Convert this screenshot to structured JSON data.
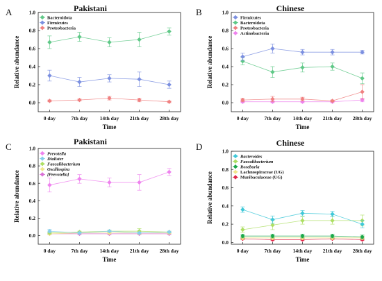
{
  "figure": {
    "panels": [
      "A",
      "B",
      "C",
      "D"
    ]
  },
  "chart_data": [
    {
      "panel": "A",
      "type": "line",
      "title": "Pakistani",
      "xlabel": "Time",
      "ylabel": "Relative abundance",
      "categories": [
        "0 day",
        "7th day",
        "14th day",
        "21th day",
        "28th day"
      ],
      "ylim": [
        -0.1,
        1.0
      ],
      "yticks": [
        "0.0",
        "0.2",
        "0.4",
        "0.6",
        "0.8",
        "1.0"
      ],
      "legend_position": "top-left",
      "series": [
        {
          "name": "Bacteroidota",
          "color": "#5fc887",
          "italic": false,
          "values": [
            0.67,
            0.73,
            0.67,
            0.7,
            0.79
          ],
          "errors": [
            0.07,
            0.05,
            0.05,
            0.08,
            0.04
          ]
        },
        {
          "name": "Firmicutes",
          "color": "#7b8fe0",
          "italic": false,
          "values": [
            0.3,
            0.23,
            0.27,
            0.26,
            0.2
          ],
          "errors": [
            0.06,
            0.05,
            0.04,
            0.08,
            0.04
          ]
        },
        {
          "name": "Proteobacteria",
          "color": "#f08080",
          "italic": false,
          "values": [
            0.02,
            0.03,
            0.05,
            0.03,
            0.01
          ],
          "errors": [
            0.01,
            0.01,
            0.02,
            0.02,
            0.01
          ]
        }
      ]
    },
    {
      "panel": "B",
      "type": "line",
      "title": "Chinese",
      "xlabel": "Time",
      "ylabel": "Relative abundance",
      "categories": [
        "0 day",
        "7th day",
        "14th day",
        "21th day",
        "28th day"
      ],
      "ylim": [
        -0.1,
        1.0
      ],
      "yticks": [
        "0.0",
        "0.2",
        "0.4",
        "0.6",
        "0.8",
        "1.0"
      ],
      "legend_position": "top-left",
      "series": [
        {
          "name": "Firmicutes",
          "color": "#7b8fe0",
          "italic": false,
          "values": [
            0.51,
            0.6,
            0.56,
            0.56,
            0.56
          ],
          "errors": [
            0.04,
            0.05,
            0.03,
            0.03,
            0.02
          ]
        },
        {
          "name": "Bacteroidota",
          "color": "#5fc887",
          "italic": false,
          "values": [
            0.46,
            0.34,
            0.39,
            0.4,
            0.27
          ],
          "errors": [
            0.04,
            0.06,
            0.05,
            0.04,
            0.06
          ]
        },
        {
          "name": "Proteobacteria",
          "color": "#f08080",
          "italic": false,
          "values": [
            0.03,
            0.04,
            0.04,
            0.02,
            0.12
          ],
          "errors": [
            0.02,
            0.03,
            0.02,
            0.01,
            0.08
          ]
        },
        {
          "name": "Actinobacteria",
          "color": "#ee82ee",
          "italic": false,
          "values": [
            0.01,
            0.01,
            0.01,
            0.01,
            0.03
          ],
          "errors": [
            0.01,
            0.01,
            0.01,
            0.01,
            0.02
          ]
        }
      ]
    },
    {
      "panel": "C",
      "type": "line",
      "title": "Pakistani",
      "xlabel": "Time",
      "ylabel": "Relative abundance",
      "categories": [
        "0 day",
        "7th day",
        "14th day",
        "21th day",
        "28th day"
      ],
      "ylim": [
        -0.1,
        1.0
      ],
      "yticks": [
        "0.0",
        "0.2",
        "0.4",
        "0.6",
        "0.8",
        "1.0"
      ],
      "legend_position": "top-left",
      "series": [
        {
          "name": "Prevotella",
          "color": "#ee82ee",
          "italic": true,
          "values": [
            0.58,
            0.65,
            0.61,
            0.61,
            0.73
          ],
          "errors": [
            0.08,
            0.05,
            0.05,
            0.09,
            0.04
          ]
        },
        {
          "name": "Dialister",
          "color": "#87ceeb",
          "italic": true,
          "values": [
            0.05,
            0.03,
            0.05,
            0.03,
            0.04
          ],
          "errors": [
            0.02,
            0.01,
            0.01,
            0.01,
            0.01
          ]
        },
        {
          "name": "Faecalibacterium",
          "color": "#adde63",
          "italic": true,
          "values": [
            0.03,
            0.04,
            0.05,
            0.05,
            0.04
          ],
          "errors": [
            0.01,
            0.01,
            0.01,
            0.03,
            0.01
          ]
        },
        {
          "name": "Oscillospira",
          "color": "#f0e68c",
          "italic": true,
          "values": [
            0.02,
            0.03,
            0.03,
            0.03,
            0.03
          ],
          "errors": [
            0.01,
            0.01,
            0.01,
            0.02,
            0.01
          ]
        },
        {
          "name": "[Prevotella]",
          "color": "#da70d6",
          "italic": true,
          "values": [
            0.02,
            0.02,
            0.02,
            0.02,
            0.02
          ],
          "errors": [
            0.01,
            0.01,
            0.01,
            0.01,
            0.01
          ]
        }
      ]
    },
    {
      "panel": "D",
      "type": "line",
      "title": "Chinese",
      "xlabel": "Time",
      "ylabel": "Relative abundance",
      "categories": [
        "0 day",
        "7th day",
        "14th day",
        "21th day",
        "28th day"
      ],
      "ylim": [
        -0.02,
        1.0
      ],
      "yticks": [
        "0.0",
        "0.2",
        "0.4",
        "0.6",
        "0.8",
        "1.0"
      ],
      "legend_position": "top-left",
      "series": [
        {
          "name": "Bacteroides",
          "color": "#40c8d8",
          "italic": true,
          "values": [
            0.36,
            0.25,
            0.32,
            0.31,
            0.2
          ],
          "errors": [
            0.03,
            0.04,
            0.03,
            0.03,
            0.04
          ]
        },
        {
          "name": "Faecalibacterium",
          "color": "#adde63",
          "italic": true,
          "values": [
            0.14,
            0.19,
            0.24,
            0.24,
            0.24
          ],
          "errors": [
            0.03,
            0.05,
            0.04,
            0.04,
            0.06
          ]
        },
        {
          "name": "Roseburia",
          "color": "#1aa84a",
          "italic": true,
          "values": [
            0.07,
            0.07,
            0.07,
            0.07,
            0.06
          ],
          "errors": [
            0.02,
            0.02,
            0.02,
            0.02,
            0.02
          ]
        },
        {
          "name": "Lachnospiraceae (UG)",
          "color": "#f0e68c",
          "italic": false,
          "values": [
            0.05,
            0.05,
            0.05,
            0.05,
            0.05
          ],
          "errors": [
            0.02,
            0.02,
            0.02,
            0.02,
            0.02
          ]
        },
        {
          "name": "Muribaculaceae (UG)",
          "color": "#e0284a",
          "italic": false,
          "values": [
            0.04,
            0.03,
            0.03,
            0.04,
            0.03
          ],
          "errors": [
            0.01,
            0.01,
            0.01,
            0.01,
            0.01
          ]
        }
      ]
    }
  ]
}
